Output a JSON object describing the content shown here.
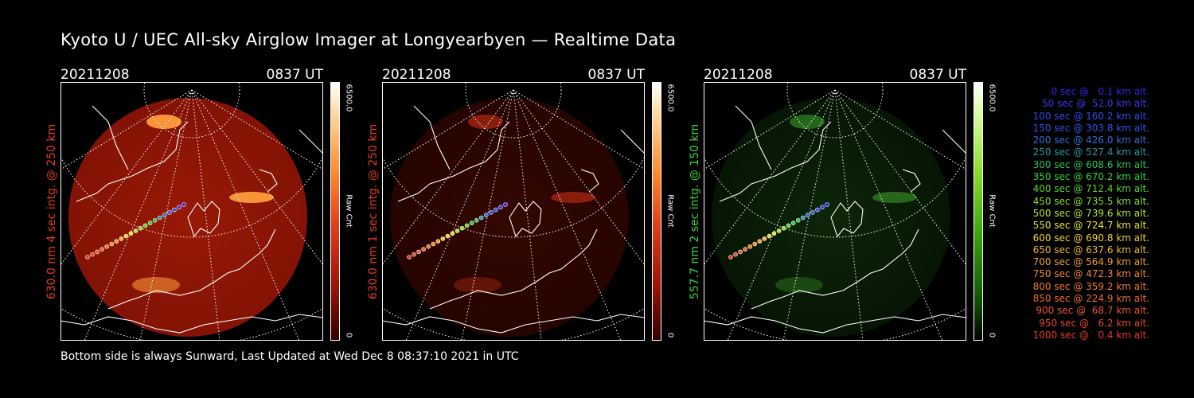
{
  "title": "Kyoto U / UEC All-sky Airglow Imager at Longyearbyen — Realtime Data",
  "footer": "Bottom side is always Sunward, Last Updated at Wed Dec  8 08:37:10 2021 in UTC",
  "colors": {
    "red_label": "#e53b1f",
    "green_label": "#35d53a"
  },
  "panels": [
    {
      "date": "20211208",
      "time": "0837 UT",
      "side_label": "630.0 nm 4 sec intg. @ 250 km",
      "label_color": "#e53b1f",
      "cbar_max": "6500.0",
      "cbar_min": "0",
      "cbar_unit": "Raw Cnt",
      "intensity": "bright-red"
    },
    {
      "date": "20211208",
      "time": "0837 UT",
      "side_label": "630.0 nm 1 sec intg. @ 250 km",
      "label_color": "#e53b1f",
      "cbar_max": "6500.0",
      "cbar_min": "0",
      "cbar_unit": "Raw Cnt",
      "intensity": "dim-red"
    },
    {
      "date": "20211208",
      "time": "0837 UT",
      "side_label": "557.7 nm 2 sec intg. @ 150 km",
      "label_color": "#35d53a",
      "cbar_max": "6500.0",
      "cbar_min": "0",
      "cbar_unit": "Raw Cnt",
      "intensity": "dim-green"
    }
  ],
  "legend": [
    {
      "text": "0 sec @   0.1 km alt.",
      "color": "#3b1ff2"
    },
    {
      "text": "50 sec @  52.0 km alt.",
      "color": "#3a35f0"
    },
    {
      "text": "100 sec @ 160.2 km alt.",
      "color": "#2f4cf0"
    },
    {
      "text": "150 sec @ 303.8 km alt.",
      "color": "#2f55e8"
    },
    {
      "text": "200 sec @ 426.0 km alt.",
      "color": "#2b70d8"
    },
    {
      "text": "250 sec @ 527.4 km alt.",
      "color": "#2a9aa8"
    },
    {
      "text": "300 sec @ 608.6 km alt.",
      "color": "#2bc25a"
    },
    {
      "text": "350 sec @ 670.2 km alt.",
      "color": "#33d23a"
    },
    {
      "text": "400 sec @ 712.4 km alt.",
      "color": "#5ad62c"
    },
    {
      "text": "450 sec @ 735.5 km alt.",
      "color": "#8ade2a"
    },
    {
      "text": "500 sec @ 739.6 km alt.",
      "color": "#b8e42a"
    },
    {
      "text": "550 sec @ 724.7 km alt.",
      "color": "#e4e62a"
    },
    {
      "text": "600 sec @ 690.8 km alt.",
      "color": "#f2d22a"
    },
    {
      "text": "650 sec @ 637.6 km alt.",
      "color": "#f2b82a"
    },
    {
      "text": "700 sec @ 564.9 km alt.",
      "color": "#f29f2a"
    },
    {
      "text": "750 sec @ 472.3 km alt.",
      "color": "#f08a2a"
    },
    {
      "text": "800 sec @ 359.2 km alt.",
      "color": "#ee7a2c"
    },
    {
      "text": "850 sec @ 224.9 km alt.",
      "color": "#ec6a2c"
    },
    {
      "text": "900 sec @  68.7 km alt.",
      "color": "#ea582c"
    },
    {
      "text": "950 sec @   6.2 km alt.",
      "color": "#e8482c"
    },
    {
      "text": "1000 sec @   0.4 km alt.",
      "color": "#e63a2c"
    }
  ]
}
